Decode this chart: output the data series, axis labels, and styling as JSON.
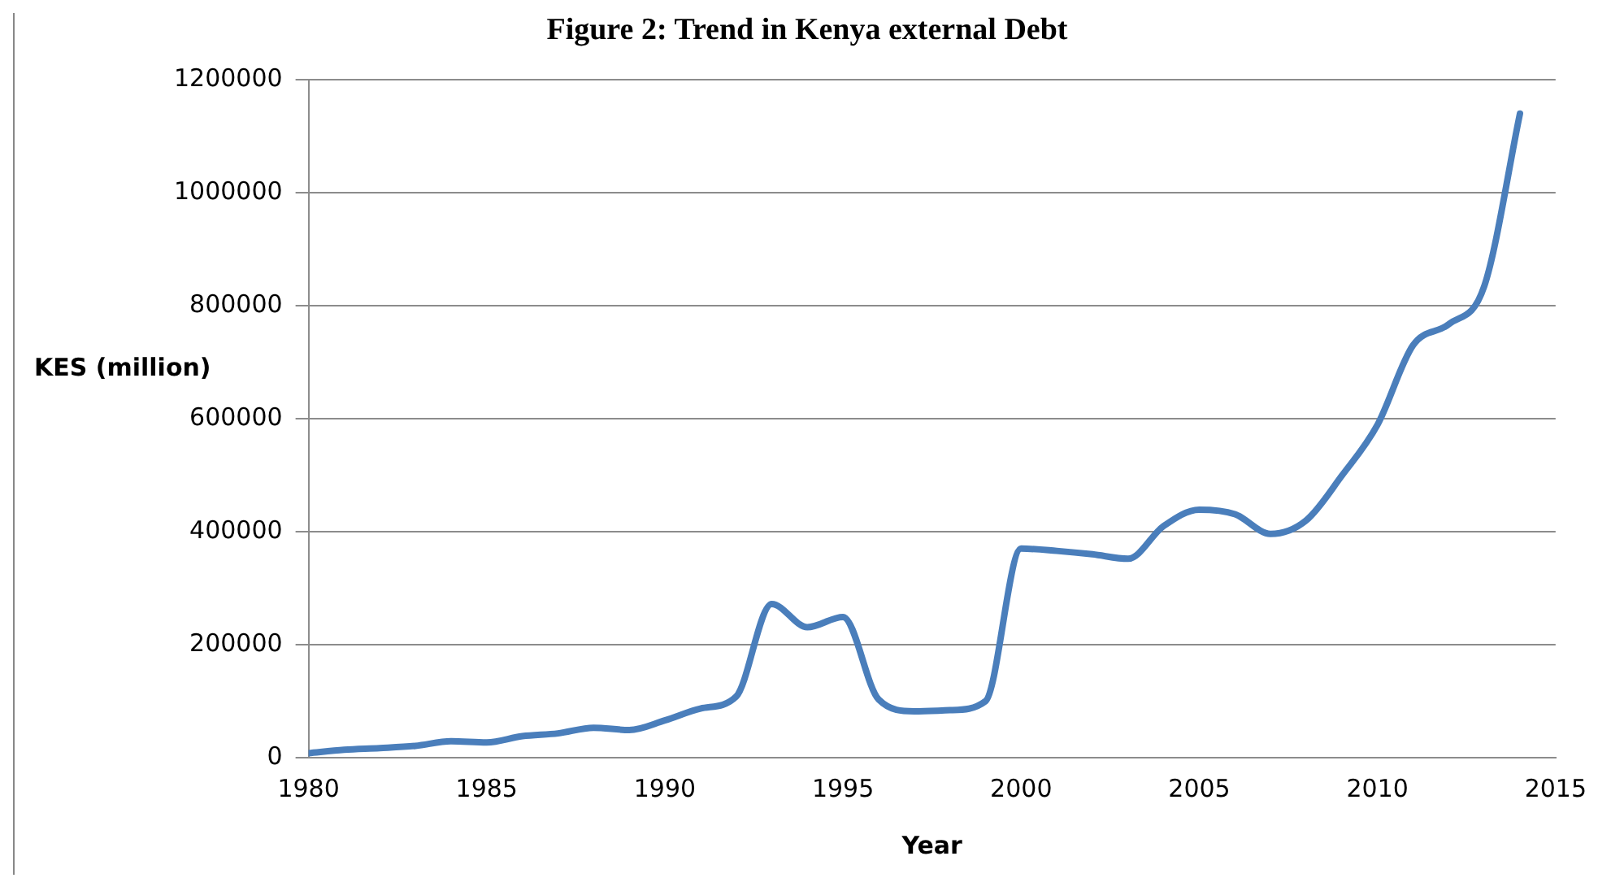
{
  "chart_data": {
    "type": "line",
    "title": "Figure 2: Trend in Kenya external Debt",
    "xlabel": "Year",
    "ylabel": "KES (million)",
    "x": [
      1980,
      1981,
      1982,
      1983,
      1984,
      1985,
      1986,
      1987,
      1988,
      1989,
      1990,
      1991,
      1992,
      1993,
      1994,
      1995,
      1996,
      1997,
      1998,
      1999,
      2000,
      2001,
      2002,
      2003,
      2004,
      2005,
      2006,
      2007,
      2008,
      2009,
      2010,
      2011,
      2012,
      2013,
      2014
    ],
    "series": [
      {
        "color": "#4a7ebb",
        "values": [
          8000,
          14000,
          17000,
          21000,
          29000,
          27000,
          38000,
          43000,
          53000,
          49000,
          66000,
          87000,
          108000,
          272000,
          231000,
          249000,
          103000,
          82000,
          84000,
          100000,
          370000,
          366000,
          360000,
          352000,
          410000,
          439000,
          431000,
          396000,
          420000,
          499000,
          589000,
          730000,
          767000,
          835000,
          1140000
        ]
      }
    ],
    "xlim": [
      1980,
      2015
    ],
    "xticks": [
      1980,
      1985,
      1990,
      1995,
      2000,
      2005,
      2010,
      2015
    ],
    "ylim": [
      0,
      1200000
    ],
    "yticks": [
      0,
      200000,
      400000,
      600000,
      800000,
      1000000,
      1200000
    ],
    "grid": "y",
    "legend": false,
    "marker": "none",
    "line_style": "solid"
  }
}
